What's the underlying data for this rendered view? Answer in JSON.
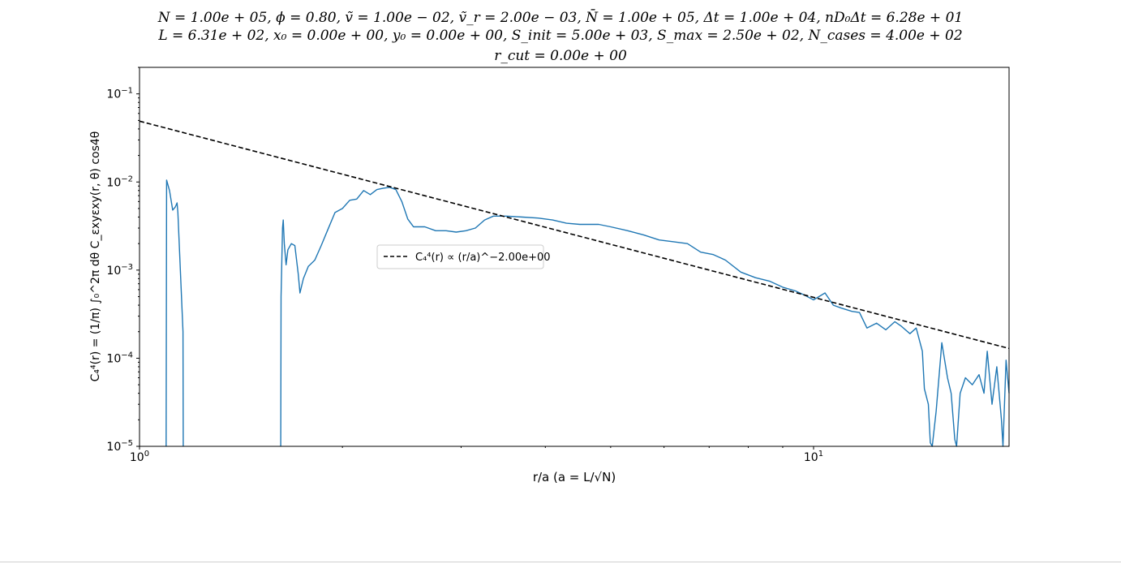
{
  "title_lines": [
    "N = 1.00e + 05, ϕ = 0.80, ṽ = 1.00e − 02, ṽ_r = 2.00e − 03, N̄ = 1.00e + 05, Δt = 1.00e + 04, nD₀Δt = 6.28e + 01",
    "L = 6.31e + 02, x₀ = 0.00e + 00, y₀ = 0.00e + 00, S_init = 5.00e + 03, S_max = 2.50e + 02, N_cases = 4.00e + 02",
    "r_cut = 0.00e + 00"
  ],
  "chart_data": {
    "type": "line",
    "xlabel": "r/a (a = L/√N)",
    "ylabel": "C₄⁴(r) = (1/π) ∫₀^2π dθ C_εxyεxy(r, θ) cos4θ",
    "xscale": "log",
    "yscale": "log",
    "xlim": [
      1.0,
      19.5
    ],
    "ylim": [
      1e-05,
      0.2
    ],
    "x_tick_labels": [
      "10^0",
      "10^1"
    ],
    "y_tick_labels": [
      "10^-5",
      "10^-4",
      "10^-3",
      "10^-2",
      "10^-1"
    ],
    "grid": false,
    "legend_position": "center",
    "series": [
      {
        "name": "",
        "color": "#1f77b4",
        "style": "solid",
        "segments": [
          [
            [
              1.095,
              1e-05
            ],
            [
              1.097,
              0.0105
            ],
            [
              1.108,
              0.008
            ],
            [
              1.12,
              0.0048
            ],
            [
              1.13,
              0.0052
            ],
            [
              1.137,
              0.0058
            ],
            [
              1.14,
              0.0045
            ],
            [
              1.16,
              0.0002
            ],
            [
              1.161,
              1e-05
            ]
          ],
          [
            [
              1.62,
              1e-05
            ],
            [
              1.622,
              0.0005
            ],
            [
              1.63,
              0.003
            ],
            [
              1.634,
              0.0037
            ],
            [
              1.64,
              0.002
            ],
            [
              1.65,
              0.00115
            ],
            [
              1.66,
              0.0017
            ],
            [
              1.68,
              0.002
            ],
            [
              1.7,
              0.0019
            ],
            [
              1.72,
              0.0009
            ],
            [
              1.73,
              0.00055
            ],
            [
              1.75,
              0.0008
            ],
            [
              1.78,
              0.0011
            ],
            [
              1.82,
              0.0013
            ],
            [
              1.86,
              0.0019
            ],
            [
              1.9,
              0.0028
            ],
            [
              1.95,
              0.0045
            ],
            [
              2.0,
              0.005
            ],
            [
              2.05,
              0.0062
            ],
            [
              2.1,
              0.0064
            ],
            [
              2.15,
              0.008
            ],
            [
              2.2,
              0.0072
            ],
            [
              2.25,
              0.0082
            ],
            [
              2.3,
              0.0085
            ],
            [
              2.35,
              0.0087
            ],
            [
              2.4,
              0.0082
            ],
            [
              2.45,
              0.006
            ],
            [
              2.5,
              0.0038
            ],
            [
              2.55,
              0.0031
            ],
            [
              2.65,
              0.0031
            ],
            [
              2.75,
              0.0028
            ],
            [
              2.85,
              0.0028
            ],
            [
              2.95,
              0.0027
            ],
            [
              3.05,
              0.0028
            ],
            [
              3.15,
              0.003
            ],
            [
              3.25,
              0.0037
            ],
            [
              3.35,
              0.0041
            ],
            [
              3.5,
              0.0041
            ],
            [
              3.7,
              0.004
            ],
            [
              3.9,
              0.0039
            ],
            [
              4.1,
              0.0037
            ],
            [
              4.3,
              0.0034
            ],
            [
              4.5,
              0.0033
            ],
            [
              4.8,
              0.0033
            ],
            [
              5.0,
              0.0031
            ],
            [
              5.3,
              0.0028
            ],
            [
              5.6,
              0.0025
            ],
            [
              5.9,
              0.0022
            ],
            [
              6.2,
              0.0021
            ],
            [
              6.5,
              0.002
            ],
            [
              6.8,
              0.0016
            ],
            [
              7.1,
              0.0015
            ],
            [
              7.4,
              0.0013
            ],
            [
              7.8,
              0.00095
            ],
            [
              8.2,
              0.00082
            ],
            [
              8.6,
              0.00075
            ],
            [
              9.0,
              0.00064
            ],
            [
              9.4,
              0.00058
            ],
            [
              9.7,
              0.00052
            ],
            [
              10.0,
              0.00046
            ],
            [
              10.4,
              0.00055
            ],
            [
              10.7,
              0.0004
            ],
            [
              11.0,
              0.00037
            ],
            [
              11.4,
              0.00034
            ],
            [
              11.7,
              0.00033
            ],
            [
              12.0,
              0.00022
            ],
            [
              12.4,
              0.00025
            ],
            [
              12.8,
              0.00021
            ],
            [
              13.2,
              0.00026
            ],
            [
              13.5,
              0.00023
            ],
            [
              13.9,
              0.00019
            ],
            [
              14.2,
              0.00022
            ],
            [
              14.5,
              0.00012
            ],
            [
              14.6,
              4.5e-05
            ],
            [
              14.8,
              3e-05
            ],
            [
              14.9,
              1.1e-05
            ],
            [
              15.0,
              1e-05
            ],
            [
              15.2,
              2.5e-05
            ],
            [
              15.5,
              0.00015
            ],
            [
              15.8,
              6e-05
            ],
            [
              16.0,
              4e-05
            ],
            [
              16.2,
              1.2e-05
            ],
            [
              16.3,
              1e-05
            ],
            [
              16.5,
              4e-05
            ],
            [
              16.8,
              6e-05
            ],
            [
              17.2,
              5e-05
            ],
            [
              17.6,
              6.5e-05
            ],
            [
              17.9,
              4e-05
            ],
            [
              18.1,
              0.00012
            ],
            [
              18.4,
              3e-05
            ],
            [
              18.7,
              8e-05
            ],
            [
              19.0,
              2e-05
            ],
            [
              19.1,
              1e-05
            ],
            [
              19.3,
              9.5e-05
            ],
            [
              19.5,
              4e-05
            ]
          ]
        ]
      },
      {
        "name": "C₄⁴(r) ∝ (r/a)^−2.00e+00",
        "color": "#000000",
        "style": "dashed",
        "segments": [
          [
            [
              1.0,
              0.049
            ],
            [
              19.5,
              0.000129
            ]
          ]
        ]
      }
    ]
  }
}
